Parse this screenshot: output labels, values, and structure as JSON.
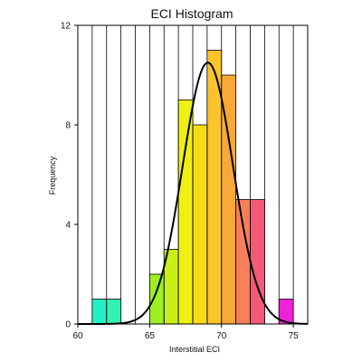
{
  "chart_data": {
    "type": "bar",
    "title": "ECI Histogram",
    "xlabel": "Interstitial ECI",
    "ylabel": "Frequency",
    "xlim": [
      60,
      76
    ],
    "ylim": [
      0,
      12
    ],
    "xticks": [
      60,
      65,
      70,
      75
    ],
    "yticks": [
      0,
      4,
      8,
      12
    ],
    "grid": "vertical lines",
    "bins": [
      {
        "x0": 61,
        "x1": 62,
        "value": 1,
        "color": "#22f0c8"
      },
      {
        "x0": 62,
        "x1": 63,
        "value": 1,
        "color": "#30f3b0"
      },
      {
        "x0": 65,
        "x1": 66,
        "value": 2,
        "color": "#9cf020"
      },
      {
        "x0": 66,
        "x1": 67,
        "value": 3,
        "color": "#c8f018"
      },
      {
        "x0": 67,
        "x1": 68,
        "value": 9,
        "color": "#eef012"
      },
      {
        "x0": 68,
        "x1": 69,
        "value": 8,
        "color": "#f8dc18"
      },
      {
        "x0": 69,
        "x1": 70,
        "value": 11,
        "color": "#fcc42c"
      },
      {
        "x0": 70,
        "x1": 71,
        "value": 10,
        "color": "#f9a838"
      },
      {
        "x0": 71,
        "x1": 72,
        "value": 5,
        "color": "#f7805a"
      },
      {
        "x0": 72,
        "x1": 73,
        "value": 5,
        "color": "#f45a78"
      },
      {
        "x0": 74,
        "x1": 75,
        "value": 1,
        "color": "#ee22d8"
      }
    ],
    "fit_curve": {
      "type": "normal",
      "mean": 69.05,
      "std": 1.75,
      "peak": 10.5,
      "color": "#000000"
    }
  }
}
